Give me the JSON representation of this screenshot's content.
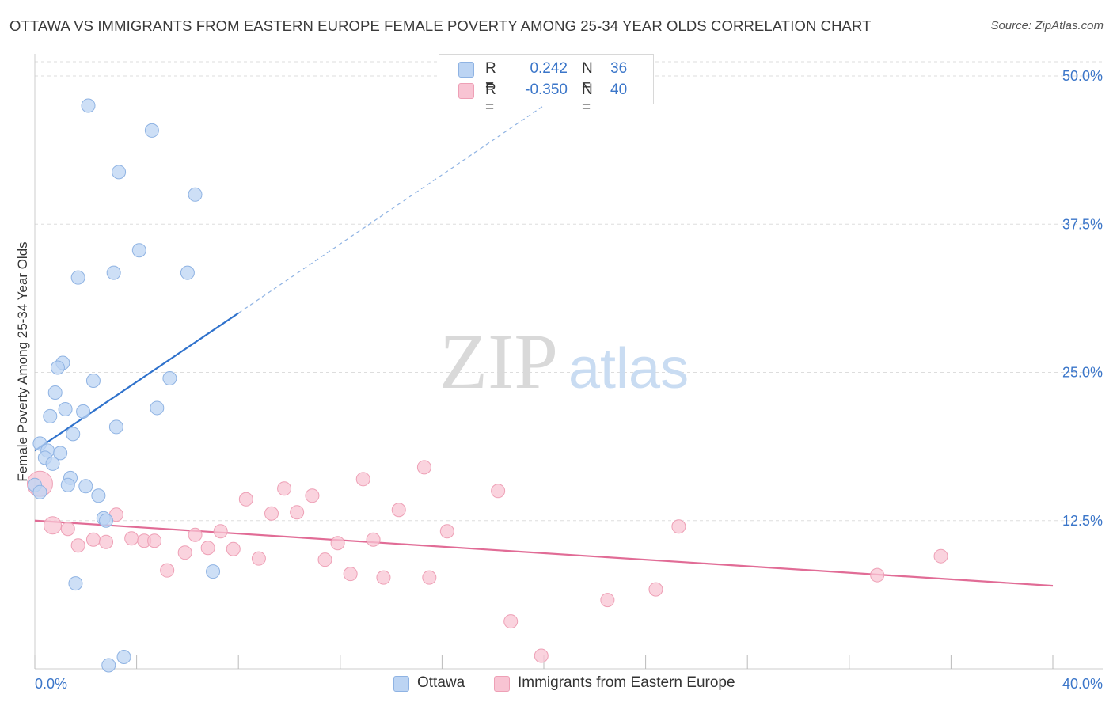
{
  "title": "OTTAWA VS IMMIGRANTS FROM EASTERN EUROPE FEMALE POVERTY AMONG 25-34 YEAR OLDS CORRELATION CHART",
  "source": "Source: ZipAtlas.com",
  "watermark": {
    "zip": "ZIP",
    "atlas": "atlas"
  },
  "colors": {
    "ottawa_fill": "#bcd4f3",
    "ottawa_stroke": "#8fb3e3",
    "ottawa_line": "#2f72cc",
    "immig_fill": "#f8c4d3",
    "immig_stroke": "#eea0b6",
    "immig_line": "#e16c96",
    "grid": "#dddddd",
    "tick_label": "#3b76c9"
  },
  "legend": {
    "rows": [
      {
        "r_label": "R =",
        "r_value": "0.242",
        "n_label": "N =",
        "n_value": "36"
      },
      {
        "r_label": "R =",
        "r_value": "-0.350",
        "n_label": "N =",
        "n_value": "40"
      }
    ]
  },
  "bottom_legend": {
    "ottawa": "Ottawa",
    "immigrants": "Immigrants from Eastern Europe"
  },
  "chart_data": {
    "type": "scatter",
    "title": "OTTAWA VS IMMIGRANTS FROM EASTERN EUROPE FEMALE POVERTY AMONG 25-34 YEAR OLDS CORRELATION CHART",
    "xlabel": "",
    "ylabel": "Female Poverty Among 25-34 Year Olds",
    "xlim": [
      0,
      40
    ],
    "ylim": [
      0,
      50
    ],
    "x_tick_labels": [
      {
        "value": 0,
        "label": "0.0%"
      },
      {
        "value": 40,
        "label": "40.0%"
      }
    ],
    "y_tick_labels": [
      {
        "value": 12.5,
        "label": "12.5%"
      },
      {
        "value": 25,
        "label": "25.0%"
      },
      {
        "value": 37.5,
        "label": "37.5%"
      },
      {
        "value": 50,
        "label": "50.0%"
      }
    ],
    "grid": true,
    "series": [
      {
        "name": "Ottawa",
        "points": [
          [
            2.1,
            47.5
          ],
          [
            4.6,
            45.4
          ],
          [
            3.3,
            41.9
          ],
          [
            6.3,
            40.0
          ],
          [
            4.1,
            35.3
          ],
          [
            3.1,
            33.4
          ],
          [
            1.7,
            33.0
          ],
          [
            6.0,
            33.4
          ],
          [
            1.1,
            25.8
          ],
          [
            0.9,
            25.4
          ],
          [
            2.3,
            24.3
          ],
          [
            5.3,
            24.5
          ],
          [
            0.8,
            23.3
          ],
          [
            1.2,
            21.9
          ],
          [
            1.9,
            21.7
          ],
          [
            0.6,
            21.3
          ],
          [
            4.8,
            22.0
          ],
          [
            3.2,
            20.4
          ],
          [
            1.5,
            19.8
          ],
          [
            0.2,
            19.0
          ],
          [
            0.5,
            18.4
          ],
          [
            1.0,
            18.2
          ],
          [
            0.4,
            17.8
          ],
          [
            0.7,
            17.3
          ],
          [
            1.4,
            16.1
          ],
          [
            0.0,
            15.5
          ],
          [
            1.3,
            15.5
          ],
          [
            2.0,
            15.4
          ],
          [
            0.2,
            14.9
          ],
          [
            2.5,
            14.6
          ],
          [
            2.7,
            12.7
          ],
          [
            2.8,
            12.5
          ],
          [
            7.0,
            8.2
          ],
          [
            1.6,
            7.2
          ],
          [
            3.5,
            1.0
          ],
          [
            2.9,
            0.3
          ]
        ]
      },
      {
        "name": "Immigrants from Eastern Europe",
        "points": [
          [
            0.2,
            15.6
          ],
          [
            0.7,
            12.1
          ],
          [
            1.3,
            11.8
          ],
          [
            1.7,
            10.4
          ],
          [
            2.3,
            10.9
          ],
          [
            2.8,
            10.7
          ],
          [
            3.2,
            13.0
          ],
          [
            3.8,
            11.0
          ],
          [
            4.3,
            10.8
          ],
          [
            4.7,
            10.8
          ],
          [
            5.2,
            8.3
          ],
          [
            5.9,
            9.8
          ],
          [
            6.3,
            11.3
          ],
          [
            6.8,
            10.2
          ],
          [
            7.3,
            11.6
          ],
          [
            7.8,
            10.1
          ],
          [
            8.3,
            14.3
          ],
          [
            8.8,
            9.3
          ],
          [
            9.3,
            13.1
          ],
          [
            9.8,
            15.2
          ],
          [
            10.3,
            13.2
          ],
          [
            10.9,
            14.6
          ],
          [
            11.4,
            9.2
          ],
          [
            11.9,
            10.6
          ],
          [
            12.4,
            8.0
          ],
          [
            12.9,
            16.0
          ],
          [
            13.3,
            10.9
          ],
          [
            13.7,
            7.7
          ],
          [
            14.3,
            13.4
          ],
          [
            15.3,
            17.0
          ],
          [
            15.5,
            7.7
          ],
          [
            16.2,
            11.6
          ],
          [
            18.2,
            15.0
          ],
          [
            18.7,
            4.0
          ],
          [
            19.9,
            1.1
          ],
          [
            22.5,
            5.8
          ],
          [
            24.4,
            6.7
          ],
          [
            25.3,
            12.0
          ],
          [
            33.1,
            7.9
          ],
          [
            35.6,
            9.5
          ]
        ]
      }
    ],
    "trend_lines": [
      {
        "series": "Ottawa",
        "start": [
          0,
          18.4
        ],
        "end": [
          8,
          30.0
        ],
        "dashed_extension_to": [
          20,
          47.5
        ]
      },
      {
        "series": "Immigrants from Eastern Europe",
        "start": [
          0,
          12.5
        ],
        "end": [
          40,
          7.0
        ]
      }
    ]
  }
}
